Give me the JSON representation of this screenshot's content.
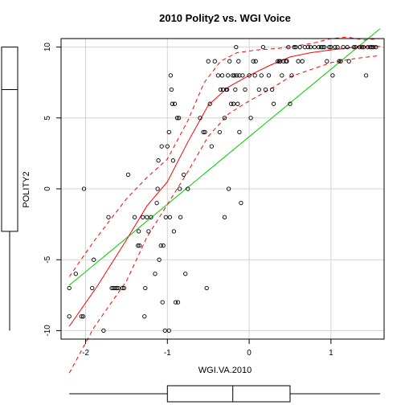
{
  "chart_data": {
    "type": "scatter",
    "title": "2010 Polity2 vs. WGI Voice",
    "xlabel": "WGI.VA.2010",
    "ylabel": "POLITY2",
    "xlim": [
      -2.3,
      1.65
    ],
    "ylim": [
      -10.6,
      10.6
    ],
    "x_ticks": [
      -2,
      -1,
      0,
      1
    ],
    "y_ticks": [
      -10,
      -5,
      0,
      5,
      10
    ],
    "grid": true,
    "points": [
      [
        -2.2,
        -9
      ],
      [
        -2.2,
        -7
      ],
      [
        -2.12,
        -6
      ],
      [
        -2.05,
        -9
      ],
      [
        -2.03,
        -9
      ],
      [
        -2.02,
        0
      ],
      [
        -1.92,
        -7
      ],
      [
        -1.9,
        -5
      ],
      [
        -1.78,
        -10
      ],
      [
        -1.72,
        -2
      ],
      [
        -1.68,
        -7
      ],
      [
        -1.66,
        -7
      ],
      [
        -1.64,
        -7
      ],
      [
        -1.62,
        -7
      ],
      [
        -1.6,
        -7
      ],
      [
        -1.55,
        -7
      ],
      [
        -1.53,
        -7
      ],
      [
        -1.48,
        1
      ],
      [
        -1.4,
        -2
      ],
      [
        -1.36,
        -4
      ],
      [
        -1.35,
        -3
      ],
      [
        -1.34,
        -4
      ],
      [
        -1.3,
        -2
      ],
      [
        -1.28,
        -9
      ],
      [
        -1.27,
        -7
      ],
      [
        -1.25,
        -2
      ],
      [
        -1.23,
        -3
      ],
      [
        -1.2,
        -2
      ],
      [
        -1.15,
        -6
      ],
      [
        -1.13,
        -1
      ],
      [
        -1.12,
        0
      ],
      [
        -1.11,
        2
      ],
      [
        -1.1,
        -5
      ],
      [
        -1.08,
        -4
      ],
      [
        -1.07,
        3
      ],
      [
        -1.06,
        -8
      ],
      [
        -1.05,
        -4
      ],
      [
        -1.03,
        -10
      ],
      [
        -1.02,
        -2
      ],
      [
        -1,
        3
      ],
      [
        -0.98,
        -10
      ],
      [
        -0.98,
        4
      ],
      [
        -0.97,
        -2
      ],
      [
        -0.96,
        8
      ],
      [
        -0.95,
        7
      ],
      [
        -0.94,
        6
      ],
      [
        -0.93,
        2
      ],
      [
        -0.92,
        -3
      ],
      [
        -0.91,
        6
      ],
      [
        -0.9,
        -8
      ],
      [
        -0.88,
        5
      ],
      [
        -0.87,
        -8
      ],
      [
        -0.86,
        5
      ],
      [
        -0.85,
        0
      ],
      [
        -0.84,
        -2
      ],
      [
        -0.8,
        1
      ],
      [
        -0.78,
        -6
      ],
      [
        -0.75,
        0
      ],
      [
        -0.6,
        5
      ],
      [
        -0.56,
        4
      ],
      [
        -0.54,
        4
      ],
      [
        -0.52,
        -7
      ],
      [
        -0.5,
        9
      ],
      [
        -0.48,
        6
      ],
      [
        -0.46,
        3
      ],
      [
        -0.42,
        9
      ],
      [
        -0.38,
        8
      ],
      [
        -0.36,
        4
      ],
      [
        -0.35,
        7
      ],
      [
        -0.33,
        8
      ],
      [
        -0.32,
        7
      ],
      [
        -0.3,
        -2
      ],
      [
        -0.3,
        5
      ],
      [
        -0.28,
        7
      ],
      [
        -0.27,
        7
      ],
      [
        -0.26,
        8
      ],
      [
        -0.25,
        0
      ],
      [
        -0.24,
        9
      ],
      [
        -0.22,
        6
      ],
      [
        -0.2,
        8
      ],
      [
        -0.19,
        6
      ],
      [
        -0.18,
        8
      ],
      [
        -0.17,
        7
      ],
      [
        -0.16,
        10
      ],
      [
        -0.15,
        8
      ],
      [
        -0.14,
        6
      ],
      [
        -0.13,
        9
      ],
      [
        -0.12,
        4
      ],
      [
        -0.12,
        8
      ],
      [
        -0.1,
        -1
      ],
      [
        -0.08,
        8
      ],
      [
        -0.05,
        7
      ],
      [
        0,
        8
      ],
      [
        0.02,
        5
      ],
      [
        0.05,
        9
      ],
      [
        0.07,
        8
      ],
      [
        0.08,
        9
      ],
      [
        0.12,
        7
      ],
      [
        0.15,
        8
      ],
      [
        0.17,
        10
      ],
      [
        0.2,
        7
      ],
      [
        0.24,
        8
      ],
      [
        0.28,
        7
      ],
      [
        0.3,
        6
      ],
      [
        0.35,
        9
      ],
      [
        0.37,
        9
      ],
      [
        0.38,
        9
      ],
      [
        0.4,
        8
      ],
      [
        0.42,
        9
      ],
      [
        0.45,
        9
      ],
      [
        0.46,
        9
      ],
      [
        0.48,
        10
      ],
      [
        0.5,
        6
      ],
      [
        0.52,
        8
      ],
      [
        0.55,
        10
      ],
      [
        0.57,
        10
      ],
      [
        0.6,
        9
      ],
      [
        0.62,
        10
      ],
      [
        0.65,
        9
      ],
      [
        0.68,
        10
      ],
      [
        0.72,
        10
      ],
      [
        0.75,
        10
      ],
      [
        0.8,
        10
      ],
      [
        0.85,
        10
      ],
      [
        0.88,
        10
      ],
      [
        0.9,
        10
      ],
      [
        0.92,
        10
      ],
      [
        0.95,
        9
      ],
      [
        0.98,
        10
      ],
      [
        1,
        10
      ],
      [
        1.02,
        8
      ],
      [
        1.05,
        10
      ],
      [
        1.08,
        10
      ],
      [
        1.1,
        9
      ],
      [
        1.12,
        9
      ],
      [
        1.15,
        10
      ],
      [
        1.2,
        10
      ],
      [
        1.22,
        9
      ],
      [
        1.28,
        10
      ],
      [
        1.3,
        10
      ],
      [
        1.35,
        10
      ],
      [
        1.38,
        10
      ],
      [
        1.4,
        10
      ],
      [
        1.43,
        8
      ],
      [
        1.45,
        10
      ],
      [
        1.48,
        10
      ],
      [
        1.5,
        10
      ],
      [
        1.52,
        10
      ],
      [
        1.55,
        10
      ]
    ],
    "linear_fit": [
      [
        -2.2,
        -6.8
      ],
      [
        1.6,
        11.3
      ]
    ],
    "smooth_fit": [
      [
        -2.2,
        -9.7
      ],
      [
        -1.85,
        -6.8
      ],
      [
        -1.5,
        -3.6
      ],
      [
        -1.25,
        -1.2
      ],
      [
        -1.0,
        0.5
      ],
      [
        -0.75,
        3.3
      ],
      [
        -0.5,
        5.9
      ],
      [
        -0.25,
        7.2
      ],
      [
        0,
        8.0
      ],
      [
        0.25,
        8.7
      ],
      [
        0.5,
        9.3
      ],
      [
        0.75,
        9.6
      ],
      [
        1.0,
        9.8
      ],
      [
        1.3,
        10
      ],
      [
        1.6,
        10.05
      ]
    ],
    "smooth_upper": [
      [
        -2.2,
        -6.2
      ],
      [
        -1.9,
        -3.7
      ],
      [
        -1.5,
        -0.7
      ],
      [
        -1.25,
        0.8
      ],
      [
        -1.0,
        2.1
      ],
      [
        -0.75,
        4.8
      ],
      [
        -0.55,
        7.5
      ],
      [
        -0.35,
        9.0
      ],
      [
        -0.15,
        9.6
      ],
      [
        0.1,
        9.8
      ],
      [
        0.35,
        9.9
      ],
      [
        0.6,
        10.1
      ],
      [
        0.8,
        10.3
      ],
      [
        1.0,
        10.6
      ],
      [
        1.2,
        10.7
      ],
      [
        1.4,
        10.5
      ],
      [
        1.6,
        10.6
      ]
    ],
    "smooth_lower": [
      [
        -2.2,
        -13
      ],
      [
        -1.9,
        -9.8
      ],
      [
        -1.5,
        -6.5
      ],
      [
        -1.25,
        -3.4
      ],
      [
        -1.0,
        -1.1
      ],
      [
        -0.75,
        1.2
      ],
      [
        -0.5,
        3.7
      ],
      [
        -0.25,
        5.3
      ],
      [
        0,
        6.2
      ],
      [
        0.25,
        7.0
      ],
      [
        0.5,
        7.9
      ],
      [
        0.75,
        8.4
      ],
      [
        1.0,
        8.9
      ],
      [
        1.3,
        9.2
      ],
      [
        1.6,
        9.4
      ]
    ],
    "series_colors": {
      "points": "#000000",
      "linear_fit": "#00cd00",
      "smooth": "#ff0000"
    },
    "x_boxplot": {
      "whisker_low": -2.2,
      "q1": -1.0,
      "median": -0.2,
      "q3": 0.5,
      "whisker_high": 1.6
    },
    "y_boxplot": {
      "whisker_low": -10,
      "q1": -3,
      "median": 7,
      "q3": 10,
      "whisker_high": 10
    }
  }
}
